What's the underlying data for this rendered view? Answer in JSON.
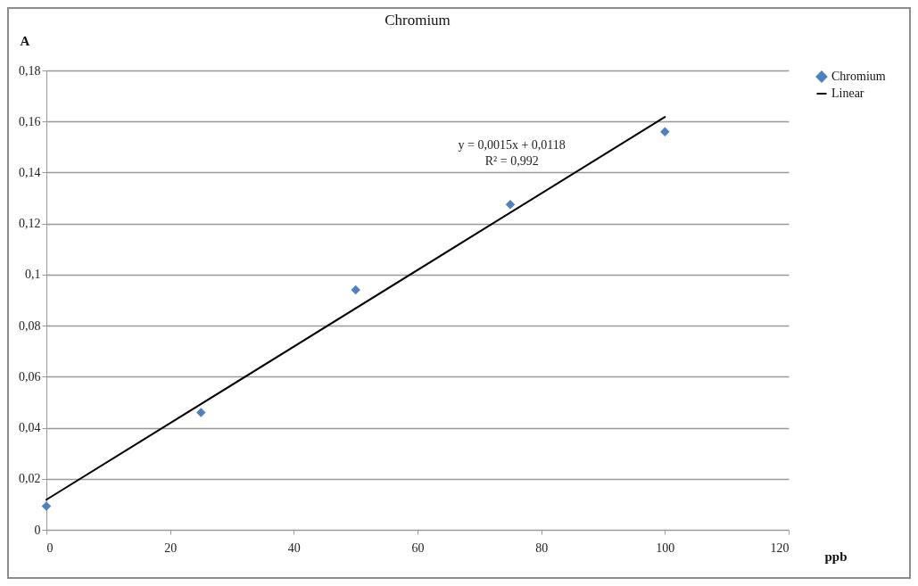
{
  "chart_data": {
    "type": "scatter",
    "title": "Chromium",
    "xlabel": "ppb",
    "ylabel": "A",
    "x": [
      0,
      25,
      50,
      75,
      100
    ],
    "series": [
      {
        "name": "Chromium",
        "color": "#4f81bd",
        "values": [
          0.0093,
          0.046,
          0.094,
          0.1275,
          0.156
        ]
      },
      {
        "name": "Linear",
        "type": "line",
        "marker": "none",
        "color": "#000000",
        "x": [
          0,
          100
        ],
        "values": [
          0.0118,
          0.1618
        ]
      }
    ],
    "annotations": [
      "y = 0,0015x + 0,0118",
      "R² = 0,992"
    ],
    "xlim": [
      0,
      120
    ],
    "xticks": [
      0,
      20,
      40,
      60,
      80,
      100,
      120
    ],
    "ylim": [
      0,
      0.18
    ],
    "yticks": [
      0,
      {
        "value": 0.02,
        "label": "0,02"
      },
      {
        "value": 0.04,
        "label": "0,04"
      },
      {
        "value": 0.06,
        "label": "0,06"
      },
      {
        "value": 0.08,
        "label": "0,08"
      },
      {
        "value": 0.1,
        "label": "0,1"
      },
      {
        "value": 0.12,
        "label": "0,12"
      },
      {
        "value": 0.14,
        "label": "0,14"
      },
      {
        "value": 0.16,
        "label": "0,16"
      },
      {
        "value": 0.18,
        "label": "0,18"
      }
    ],
    "grid": "y",
    "legend": "right",
    "marker": "diamond"
  }
}
